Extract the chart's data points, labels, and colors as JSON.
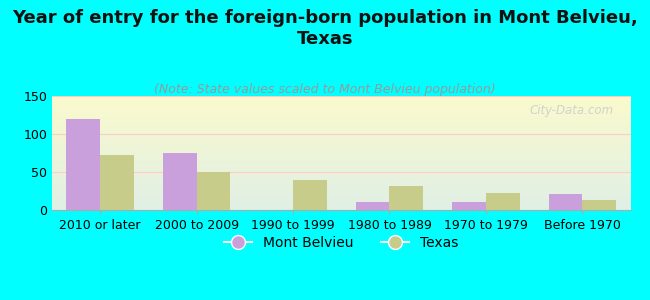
{
  "title": "Year of entry for the foreign-born population in Mont Belvieu,\nTexas",
  "subtitle": "(Note: State values scaled to Mont Belvieu population)",
  "categories": [
    "2010 or later",
    "2000 to 2009",
    "1990 to 1999",
    "1980 to 1989",
    "1970 to 1979",
    "Before 1970"
  ],
  "mont_belvieu": [
    120,
    75,
    0,
    10,
    11,
    21
  ],
  "texas": [
    73,
    50,
    40,
    32,
    22,
    13
  ],
  "mont_belvieu_color": "#c9a0dc",
  "texas_color": "#c8cc8a",
  "background_color": "#00ffff",
  "ylim": [
    0,
    150
  ],
  "yticks": [
    0,
    50,
    100,
    150
  ],
  "bar_width": 0.35,
  "watermark": "City-Data.com",
  "title_fontsize": 13,
  "subtitle_fontsize": 9,
  "legend_fontsize": 10,
  "tick_fontsize": 9
}
